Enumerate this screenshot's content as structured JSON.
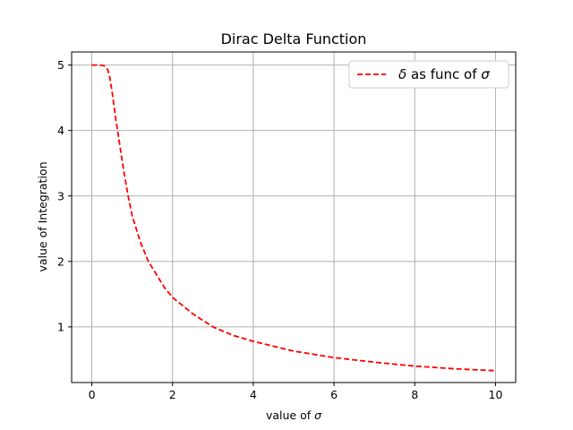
{
  "chart_data": {
    "type": "line",
    "title": "Dirac Delta Function",
    "xlabel_prefix": "value of ",
    "xlabel_symbol": "σ",
    "ylabel": "value of Integration",
    "xlim": [
      -0.5,
      10.5
    ],
    "ylim": [
      0.15,
      5.2
    ],
    "xticks": [
      0,
      2,
      4,
      6,
      8,
      10
    ],
    "yticks": [
      1,
      2,
      3,
      4,
      5
    ],
    "grid": true,
    "legend_position": "top-right",
    "series": [
      {
        "legend_symbol": "δ",
        "legend_mid": " as func of ",
        "legend_symbol2": "σ",
        "color": "#ff0000",
        "style": "dashed",
        "x": [
          0.0,
          0.1,
          0.2,
          0.3,
          0.35,
          0.4,
          0.45,
          0.5,
          0.6,
          0.7,
          0.8,
          0.9,
          1.0,
          1.2,
          1.4,
          1.6,
          1.8,
          2.0,
          2.5,
          3.0,
          3.5,
          4.0,
          5.0,
          6.0,
          7.0,
          8.0,
          9.0,
          10.0
        ],
        "y": [
          5.0,
          5.0,
          5.0,
          4.99,
          4.97,
          4.92,
          4.8,
          4.6,
          4.15,
          3.75,
          3.35,
          3.0,
          2.7,
          2.3,
          2.0,
          1.8,
          1.6,
          1.45,
          1.2,
          1.0,
          0.87,
          0.78,
          0.63,
          0.53,
          0.46,
          0.4,
          0.36,
          0.33
        ]
      }
    ]
  }
}
